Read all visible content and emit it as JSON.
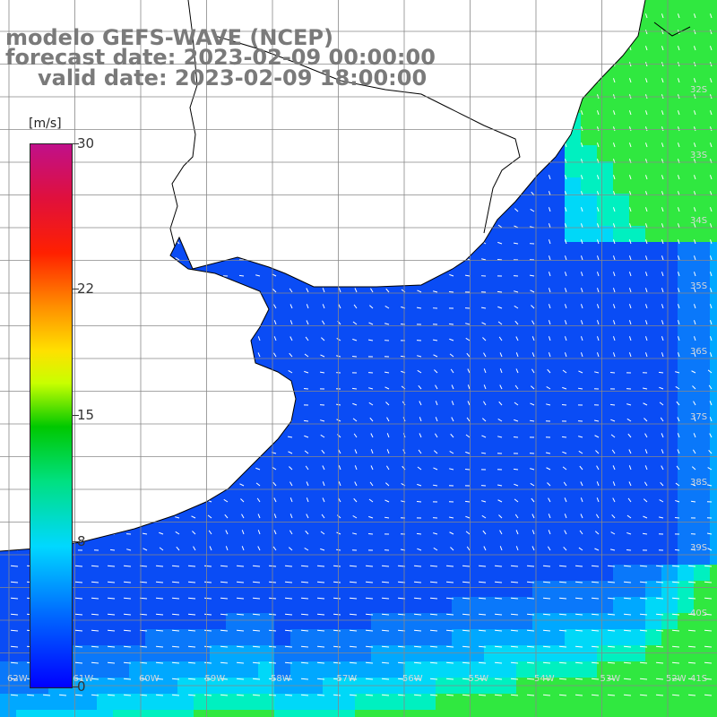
{
  "header": {
    "model": "modelo GEFS-WAVE (NCEP)",
    "forecast": "forecast date: 2023-02-09 00:00:00",
    "valid": "valid date: 2023-02-09 18:00:00"
  },
  "colorbar": {
    "unit": "[m/s]",
    "ticks": [
      "30",
      "22",
      "15",
      "8",
      "0"
    ],
    "tick_values": [
      30,
      22,
      15,
      8,
      0
    ],
    "range": [
      0,
      30
    ],
    "colors": [
      "#0000ff",
      "#0066ff",
      "#00d8ff",
      "#00e080",
      "#00c800",
      "#c8ff00",
      "#ffe000",
      "#ff9000",
      "#ff2000",
      "#e0103c",
      "#c0108a"
    ]
  },
  "map": {
    "lat_labels": [
      "32S",
      "33S",
      "34S",
      "35S",
      "36S",
      "37S",
      "38S",
      "39S",
      "40S",
      "41S"
    ],
    "lon_labels": [
      "62W",
      "61W",
      "60W",
      "59W",
      "58W",
      "57W",
      "56W",
      "55W",
      "54W",
      "53W",
      "52W"
    ],
    "land_color": "#ffffff",
    "grid_color": "#888888",
    "coast_color": "#000000"
  }
}
